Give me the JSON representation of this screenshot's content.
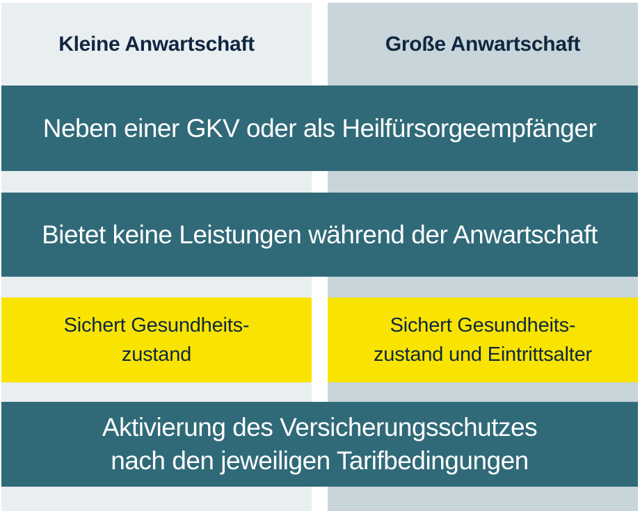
{
  "colors": {
    "teal": "#306a78",
    "yellow": "#f8e400",
    "navy": "#102741",
    "col_left": "#e9eef1",
    "col_right": "#c8d5da"
  },
  "columns": {
    "left": {
      "header": "Kleine Anwartschaft"
    },
    "right": {
      "header": "Große Anwartschaft"
    }
  },
  "rows": {
    "gkv": "Neben einer GKV oder als Heilfürsorgeempfänger",
    "keine_leistungen": "Bietet keine Leistungen während der Anwartschaft",
    "sichert_left_line1": "Sichert Gesundheits-",
    "sichert_left_line2": "zustand",
    "sichert_right_line1": "Sichert Gesundheits-",
    "sichert_right_line2": "zustand und Eintrittsalter",
    "aktivierung_line1": "Aktivierung des Versicherungsschutzes",
    "aktivierung_line2": "nach den jeweiligen Tarifbedingungen"
  }
}
